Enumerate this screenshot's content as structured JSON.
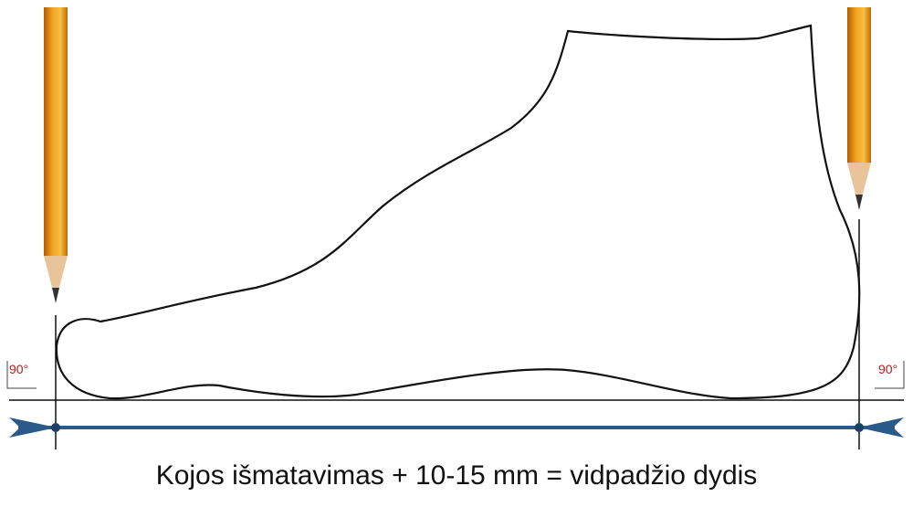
{
  "left_angle": "90°",
  "right_angle": "90°",
  "caption": "Kojos išmatavimas + 10-15 mm = vidpadžio dydis"
}
